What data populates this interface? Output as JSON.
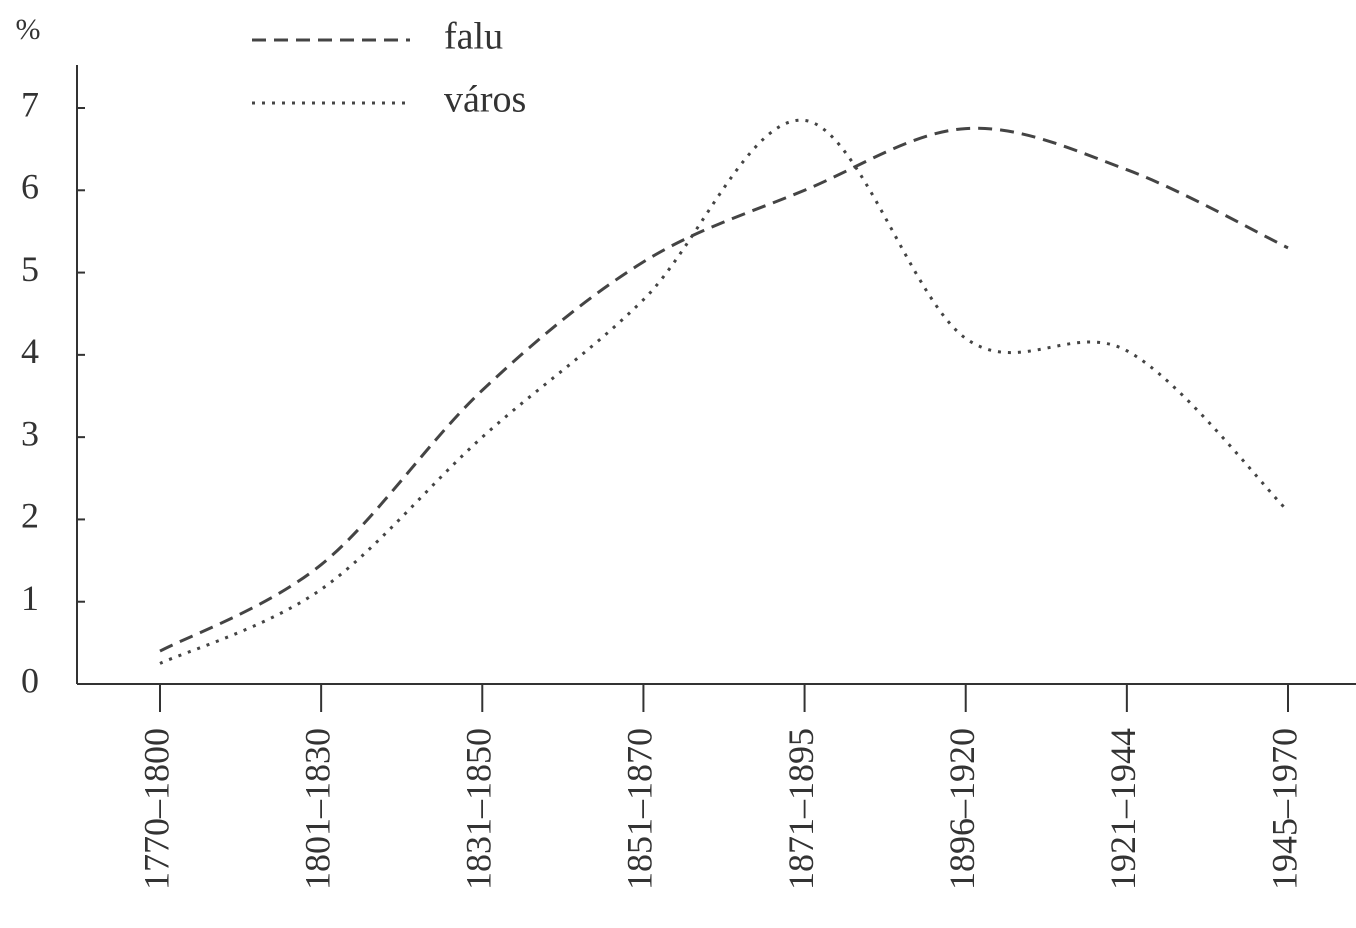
{
  "chart_data": {
    "type": "line",
    "ylabel": "%",
    "categories": [
      "1770–1800",
      "1801–1830",
      "1831–1850",
      "1851–1870",
      "1871–1895",
      "1896–1920",
      "1921–1944",
      "1945–1970"
    ],
    "series": [
      {
        "name": "falu",
        "color": "#444444",
        "style": "dashed",
        "values": [
          0.4,
          1.45,
          3.57,
          5.13,
          6.0,
          6.75,
          6.25,
          5.3
        ]
      },
      {
        "name": "város",
        "color": "#444444",
        "style": "dotted",
        "values": [
          0.25,
          1.15,
          3.0,
          4.67,
          6.85,
          4.2,
          4.05,
          2.1
        ]
      }
    ],
    "ylim": [
      0,
      7.5
    ],
    "yticks": [
      0,
      1,
      2,
      3,
      4,
      5,
      6,
      7
    ],
    "legend": "top-left",
    "smooth": true
  }
}
